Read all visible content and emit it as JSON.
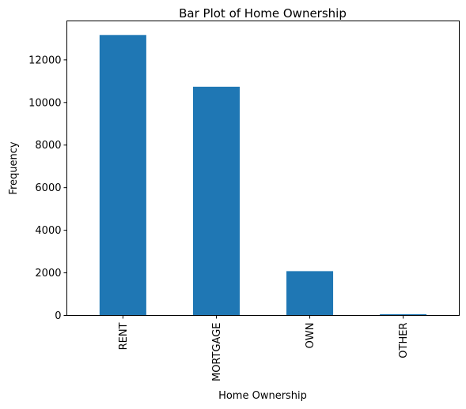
{
  "chart_data": {
    "type": "bar",
    "title": "Bar Plot of Home Ownership",
    "xlabel": "Home Ownership",
    "ylabel": "Frequency",
    "categories": [
      "RENT",
      "MORTGAGE",
      "OWN",
      "OTHER"
    ],
    "values": [
      13170,
      10740,
      2080,
      60
    ],
    "ylim": [
      0,
      13830
    ],
    "yticks": [
      0,
      2000,
      4000,
      6000,
      8000,
      10000,
      12000
    ],
    "bar_color": "#1f77b4",
    "grid": false,
    "legend": "none"
  }
}
